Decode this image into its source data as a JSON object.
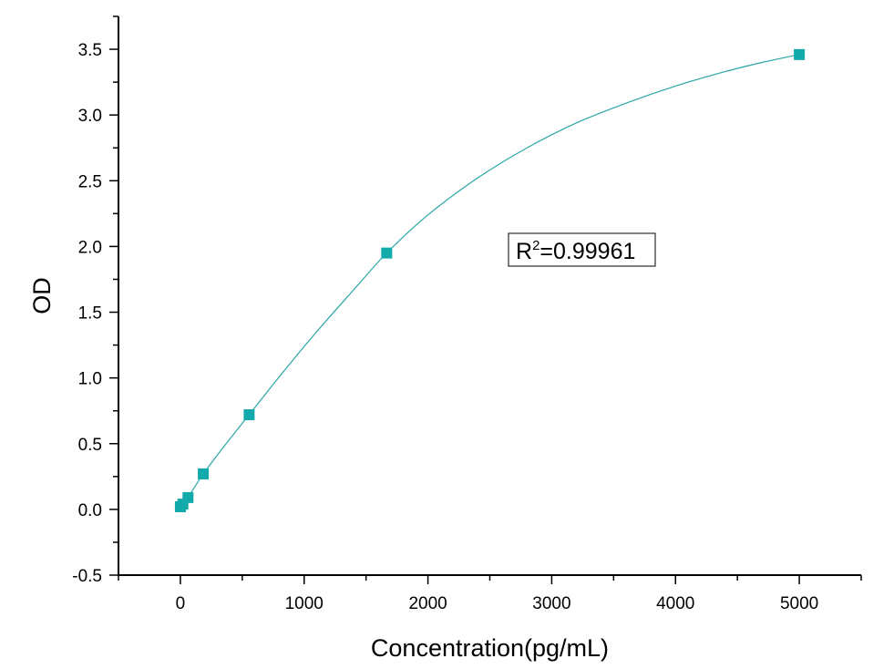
{
  "chart_data": {
    "type": "scatter",
    "title": "",
    "xlabel": "Concentration(pg/mL)",
    "ylabel": "OD",
    "xlim": [
      -500,
      5500
    ],
    "ylim": [
      -0.5,
      3.75
    ],
    "x_ticks": [
      0,
      1000,
      2000,
      3000,
      4000,
      5000
    ],
    "x_tick_labels": [
      "0",
      "1000",
      "2000",
      "3000",
      "4000",
      "5000"
    ],
    "y_ticks": [
      -0.5,
      0.0,
      0.5,
      1.0,
      1.5,
      2.0,
      2.5,
      3.0,
      3.5
    ],
    "y_tick_labels": [
      "-0.5",
      "0.0",
      "0.5",
      "1.0",
      "1.5",
      "2.0",
      "2.5",
      "3.0",
      "3.5"
    ],
    "grid": false,
    "series": [
      {
        "x": [
          0,
          20.58,
          61.73,
          185.19,
          555.56,
          1666.67,
          5000
        ],
        "y": [
          0.02,
          0.04,
          0.09,
          0.27,
          0.72,
          1.95,
          3.46
        ]
      }
    ],
    "fit_curve": {
      "type": "four-parameter logistic",
      "x": [
        0,
        20.58,
        61.73,
        185.19,
        370,
        555.56,
        800,
        1100,
        1400,
        1666.67,
        2000,
        2400,
        2800,
        3200,
        3600,
        4000,
        4400,
        4700,
        5000
      ],
      "y": [
        0.02,
        0.04,
        0.09,
        0.27,
        0.5,
        0.72,
        1.01,
        1.35,
        1.67,
        1.95,
        2.24,
        2.52,
        2.75,
        2.94,
        3.09,
        3.22,
        3.33,
        3.4,
        3.46
      ]
    },
    "annotation": {
      "prefix": "R",
      "superscript": "2",
      "suffix": "=0.99961",
      "position": "middle-right"
    },
    "colors": {
      "marker": "#12aaaa",
      "curve": "#2aa5a5",
      "axis": "#000000"
    }
  }
}
